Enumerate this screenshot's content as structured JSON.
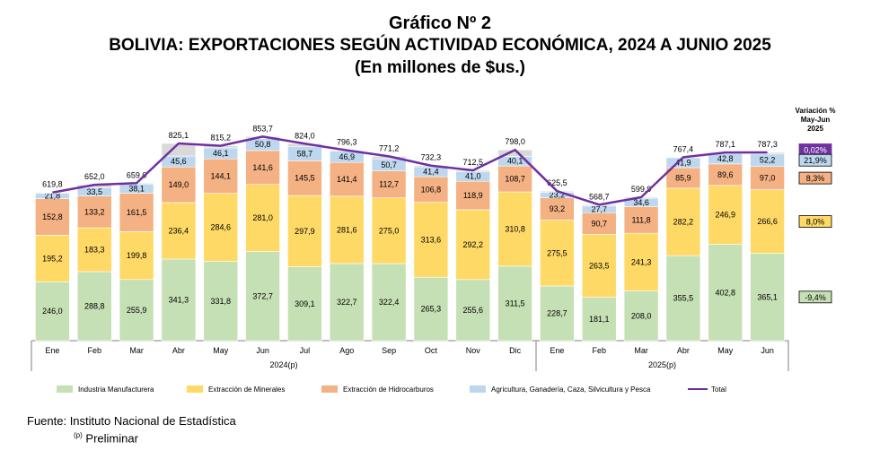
{
  "title": "Gráfico Nº 2",
  "subtitle": "BOLIVIA: EXPORTACIONES SEGÚN ACTIVIDAD ECONÓMICA, 2024 A JUNIO 2025",
  "units": "(En millones de $us.)",
  "source": "Fuente: Instituto Nacional de Estadística",
  "note_mark": "(p)",
  "note": "Preliminar",
  "colors": {
    "manufactura": "#c5e0b4",
    "minerales": "#ffd966",
    "hidrocarburos": "#f4b183",
    "agricultura": "#bdd7ee",
    "total": "#7030a0"
  },
  "chart_data": {
    "type": "bar",
    "stacked": true,
    "categories": [
      "Ene",
      "Feb",
      "Mar",
      "Abr",
      "May",
      "Jun",
      "Jul",
      "Ago",
      "Sep",
      "Oct",
      "Nov",
      "Dic",
      "Ene",
      "Feb",
      "Mar",
      "Abr",
      "May",
      "Jun"
    ],
    "year_groups": [
      {
        "label": "2024(p)",
        "count": 12
      },
      {
        "label": "2025(p)",
        "count": 6
      }
    ],
    "series": [
      {
        "name": "Industria Manufacturera",
        "display": [
          "246,0",
          "288,8",
          "255,9",
          "341,3",
          "331,8",
          "372,7",
          "309,1",
          "322,7",
          "322,4",
          "265,3",
          "255,6",
          "311,5",
          "228,7",
          "181,1",
          "208,0",
          "355,5",
          "402,8",
          "365,1"
        ],
        "values": [
          246.0,
          288.8,
          255.9,
          341.3,
          331.8,
          372.7,
          309.1,
          322.7,
          322.4,
          265.3,
          255.6,
          311.5,
          228.7,
          181.1,
          208.0,
          355.5,
          402.8,
          365.1
        ]
      },
      {
        "name": "Extracción de Minerales",
        "display": [
          "195,2",
          "183,3",
          "199,8",
          "236,4",
          "284,6",
          "281,0",
          "297,9",
          "281,6",
          "275,0",
          "313,6",
          "292,2",
          "310,8",
          "275,5",
          "263,5",
          "241,3",
          "282,2",
          "246,9",
          "266,6"
        ],
        "values": [
          195.2,
          183.3,
          199.8,
          236.4,
          284.6,
          281.0,
          297.9,
          281.6,
          275.0,
          313.6,
          292.2,
          310.8,
          275.5,
          263.5,
          241.3,
          282.2,
          246.9,
          266.6
        ]
      },
      {
        "name": "Extracción de Hidrocarburos",
        "display": [
          "152,8",
          "133,2",
          "161,5",
          "149,0",
          "144,1",
          "141,6",
          "145,5",
          "141,4",
          "112,7",
          "106,8",
          "118,9",
          "108,7",
          "93,2",
          "90,7",
          "111,8",
          "85,9",
          "89,6",
          "97,0"
        ],
        "values": [
          152.8,
          133.2,
          161.5,
          149.0,
          144.1,
          141.6,
          145.5,
          141.4,
          112.7,
          106.8,
          118.9,
          108.7,
          93.2,
          90.7,
          111.8,
          85.9,
          89.6,
          97.0
        ]
      },
      {
        "name": "Agricultura, Ganadería, Caza, Silvicultura y Pesca",
        "display": [
          "21,8",
          "33,5",
          "38,1",
          "45,6",
          "46,1",
          "50,8",
          "58,7",
          "46,9",
          "50,7",
          "41,4",
          "41,0",
          "40,1",
          "23,2",
          "27,7",
          "34,6",
          "41,9",
          "42,8",
          "52,2"
        ],
        "values": [
          21.8,
          33.5,
          38.1,
          45.6,
          46.1,
          50.8,
          58.7,
          46.9,
          50.7,
          41.4,
          41.0,
          40.1,
          23.2,
          27.7,
          34.6,
          41.9,
          42.8,
          52.2
        ]
      }
    ],
    "total": {
      "name": "Total",
      "display": [
        "619,8",
        "652,0",
        "659,0",
        "825,1",
        "815,2",
        "853,7",
        "824,0",
        "796,3",
        "771,2",
        "732,3",
        "712,5",
        "798,0",
        "625,5",
        "568,7",
        "599,9",
        "767,4",
        "787,1",
        "787,3"
      ],
      "values": [
        619.8,
        652.0,
        659.0,
        825.1,
        815.2,
        853.7,
        824.0,
        796.3,
        771.2,
        732.3,
        712.5,
        798.0,
        625.5,
        568.7,
        599.9,
        767.4,
        787.1,
        787.3
      ]
    },
    "variation": {
      "title_lines": [
        "Variación %",
        "May-Jun",
        "2025"
      ],
      "total": "0,02%",
      "agricultura": "21,9%",
      "hidrocarburos": "8,3%",
      "minerales": "8,0%",
      "manufactura": "-9,4%"
    },
    "legend_position": "bottom",
    "grid": false,
    "ylim": [
      0,
      900
    ]
  }
}
